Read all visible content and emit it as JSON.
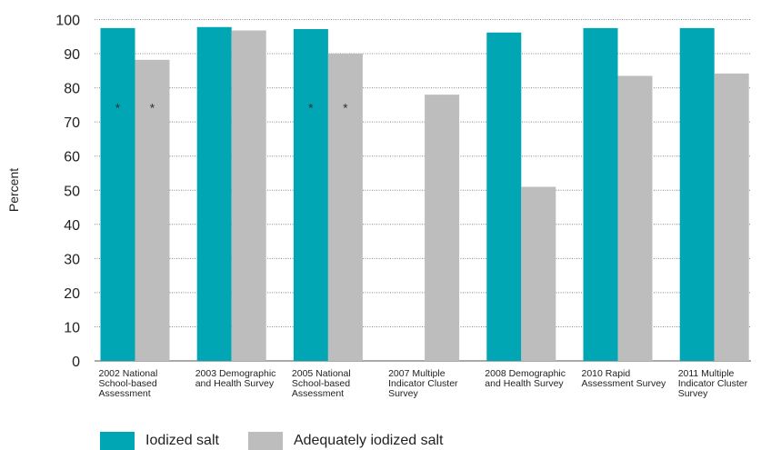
{
  "chart_data": {
    "type": "bar",
    "ylabel": "Percent",
    "ylim": [
      0,
      100
    ],
    "yticks": [
      0,
      10,
      20,
      30,
      40,
      50,
      60,
      70,
      80,
      90,
      100
    ],
    "grid": true,
    "legend_placement": "bottom-left",
    "categories": [
      [
        "2002 National",
        "School-based",
        "Assessment"
      ],
      [
        "2003 Demographic",
        "and Health Survey"
      ],
      [
        "2005 National",
        "School-based",
        "Assessment"
      ],
      [
        "2007 Multiple",
        "Indicator Cluster",
        "Survey"
      ],
      [
        "2008 Demographic",
        "and Health Survey"
      ],
      [
        "2010 Rapid",
        "Assessment Survey"
      ],
      [
        "2011 Multiple",
        "Indicator Cluster",
        "Survey"
      ]
    ],
    "series": [
      {
        "name": "Iodized salt",
        "color": "#00a6b4",
        "values": [
          97.5,
          97.8,
          97.2,
          null,
          96.2,
          97.5,
          97.5
        ]
      },
      {
        "name": "Adequately iodized salt",
        "color": "#bdbdbd",
        "values": [
          88.2,
          96.8,
          90,
          78,
          51,
          83.5,
          84.2
        ]
      }
    ],
    "annotations": [
      {
        "category_index": 0,
        "series_index": 0,
        "text": "*",
        "y": 75
      },
      {
        "category_index": 0,
        "series_index": 1,
        "text": "*",
        "y": 75
      },
      {
        "category_index": 2,
        "series_index": 0,
        "text": "*",
        "y": 75
      },
      {
        "category_index": 2,
        "series_index": 1,
        "text": "*",
        "y": 75
      }
    ]
  }
}
